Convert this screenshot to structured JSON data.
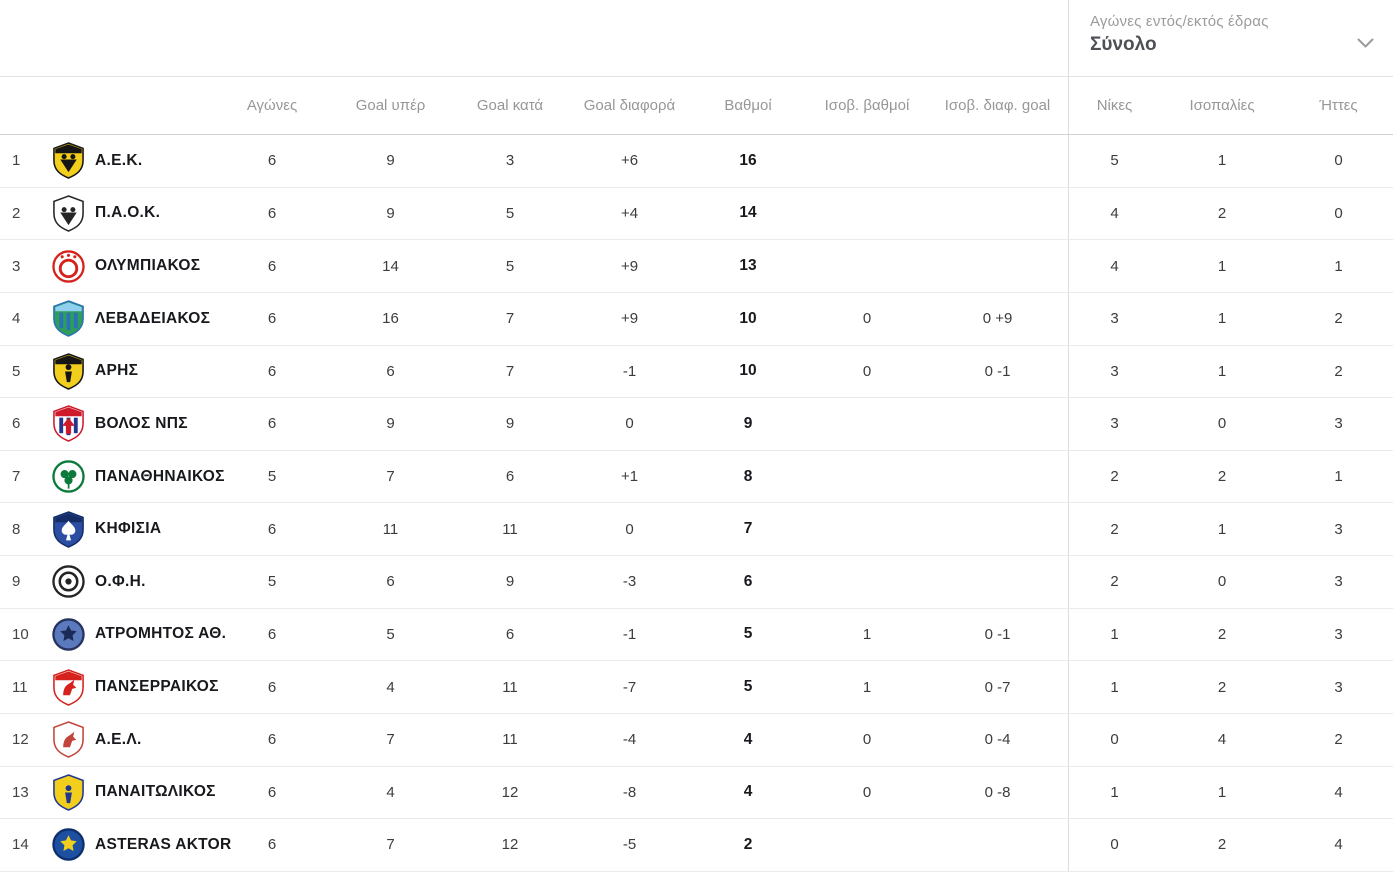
{
  "filter": {
    "label": "Αγώνες εντός/εκτός έδρας",
    "value": "Σύνολο",
    "chevron_icon": "chevron-down",
    "chevron_color": "#9b9b9b"
  },
  "colors": {
    "header_text": "#97979a",
    "row_border": "#ebebeb",
    "section_divider": "#dedede",
    "team_name_text": "#17191d",
    "value_text": "#3c3c3c"
  },
  "table": {
    "columns": [
      "",
      "Αγώνες",
      "Goal υπέρ",
      "Goal κατά",
      "Goal διαφορά",
      "Βαθμοί",
      "Ισοβ. βαθμοί",
      "Ισοβ. διαφ. goal",
      "Νίκες",
      "Ισοπαλίες",
      "Ήττες"
    ],
    "rows": [
      {
        "pos": 1,
        "team": "Α.Ε.Κ.",
        "played": 6,
        "gf": 9,
        "ga": 3,
        "gd": "+6",
        "pts": 16,
        "tb_pts": "",
        "tb_gd": "",
        "wins": 5,
        "draws": 1,
        "losses": 0,
        "logo": {
          "shape": "shield",
          "bg": "#f2cf1d",
          "border": "#151515",
          "band": "#151515",
          "emblems": [
            {
              "type": "eagle",
              "color": "#151515"
            }
          ]
        }
      },
      {
        "pos": 2,
        "team": "Π.Α.Ο.Κ.",
        "played": 6,
        "gf": 9,
        "ga": 5,
        "gd": "+4",
        "pts": 14,
        "tb_pts": "",
        "tb_gd": "",
        "wins": 4,
        "draws": 2,
        "losses": 0,
        "logo": {
          "shape": "shield",
          "bg": "#ffffff",
          "border": "#262626",
          "emblems": [
            {
              "type": "eagle",
              "color": "#262626"
            }
          ]
        }
      },
      {
        "pos": 3,
        "team": "ΟΛΥΜΠΙΑΚΟΣ",
        "played": 6,
        "gf": 14,
        "ga": 5,
        "gd": "+9",
        "pts": 13,
        "tb_pts": "",
        "tb_gd": "",
        "wins": 4,
        "draws": 1,
        "losses": 1,
        "logo": {
          "shape": "circle",
          "bg": "#ffffff",
          "border": "#d6221c",
          "emblems": [
            {
              "type": "wreath",
              "color": "#d6221c"
            }
          ]
        }
      },
      {
        "pos": 4,
        "team": "ΛΕΒΑΔΕΙΑΚΟΣ",
        "played": 6,
        "gf": 16,
        "ga": 7,
        "gd": "+9",
        "pts": 10,
        "tb_pts": "0",
        "tb_gd": "0 +9",
        "wins": 3,
        "draws": 1,
        "losses": 2,
        "logo": {
          "shape": "shield",
          "bg": "#2f9e57",
          "border": "#2a72b8",
          "band": "#8ed0ee",
          "emblems": [
            {
              "type": "stripes",
              "color": "#2a72b8"
            }
          ]
        }
      },
      {
        "pos": 5,
        "team": "ΑΡΗΣ",
        "played": 6,
        "gf": 6,
        "ga": 7,
        "gd": "-1",
        "pts": 10,
        "tb_pts": "0",
        "tb_gd": "0 -1",
        "wins": 3,
        "draws": 1,
        "losses": 2,
        "logo": {
          "shape": "shield",
          "bg": "#f2cf1d",
          "border": "#151515",
          "band": "#151515",
          "emblems": [
            {
              "type": "figure",
              "color": "#151515"
            }
          ]
        }
      },
      {
        "pos": 6,
        "team": "ΒΟΛΟΣ ΝΠΣ",
        "played": 6,
        "gf": 9,
        "ga": 9,
        "gd": "0",
        "pts": 9,
        "tb_pts": "",
        "tb_gd": "",
        "wins": 3,
        "draws": 0,
        "losses": 3,
        "logo": {
          "shape": "shield",
          "bg": "#ffffff",
          "border": "#cf1a2b",
          "band": "#cf1a2b",
          "emblems": [
            {
              "type": "stripes",
              "color": "#20368f"
            },
            {
              "type": "arrow",
              "color": "#cf1a2b"
            }
          ]
        }
      },
      {
        "pos": 7,
        "team": "ΠΑΝΑΘΗΝΑΙΚΟΣ",
        "played": 5,
        "gf": 7,
        "ga": 6,
        "gd": "+1",
        "pts": 8,
        "tb_pts": "",
        "tb_gd": "",
        "wins": 2,
        "draws": 2,
        "losses": 1,
        "logo": {
          "shape": "circle",
          "bg": "#ffffff",
          "border": "#0b7a3b",
          "emblems": [
            {
              "type": "clover",
              "color": "#0b7a3b"
            }
          ]
        }
      },
      {
        "pos": 8,
        "team": "ΚΗΦΙΣΙΑ",
        "played": 6,
        "gf": 11,
        "ga": 11,
        "gd": "0",
        "pts": 7,
        "tb_pts": "",
        "tb_gd": "",
        "wins": 2,
        "draws": 1,
        "losses": 3,
        "logo": {
          "shape": "shield",
          "bg": "#2b4ea2",
          "border": "#142d66",
          "band": "#142d66",
          "emblems": [
            {
              "type": "spade",
              "color": "#ffffff"
            }
          ]
        }
      },
      {
        "pos": 9,
        "team": "Ο.Φ.Η.",
        "played": 5,
        "gf": 6,
        "ga": 9,
        "gd": "-3",
        "pts": 6,
        "tb_pts": "",
        "tb_gd": "",
        "wins": 2,
        "draws": 0,
        "losses": 3,
        "logo": {
          "shape": "circle",
          "bg": "#ffffff",
          "border": "#242424",
          "emblems": [
            {
              "type": "ring",
              "color": "#242424"
            }
          ]
        }
      },
      {
        "pos": 10,
        "team": "ΑΤΡΟΜΗΤΟΣ ΑΘ.",
        "played": 6,
        "gf": 5,
        "ga": 6,
        "gd": "-1",
        "pts": 5,
        "tb_pts": "1",
        "tb_gd": "0 -1",
        "wins": 1,
        "draws": 2,
        "losses": 3,
        "logo": {
          "shape": "circle",
          "bg": "#5b79bd",
          "border": "#26335f",
          "emblems": [
            {
              "type": "star",
              "color": "#1c2a57"
            }
          ]
        }
      },
      {
        "pos": 11,
        "team": "ΠΑΝΣΕΡΡΑΙΚΟΣ",
        "played": 6,
        "gf": 4,
        "ga": 11,
        "gd": "-7",
        "pts": 5,
        "tb_pts": "1",
        "tb_gd": "0 -7",
        "wins": 1,
        "draws": 2,
        "losses": 3,
        "logo": {
          "shape": "shield",
          "bg": "#ffffff",
          "border": "#d6221c",
          "band": "#d6221c",
          "emblems": [
            {
              "type": "horse",
              "color": "#d6221c"
            }
          ]
        }
      },
      {
        "pos": 12,
        "team": "Α.Ε.Λ.",
        "played": 6,
        "gf": 7,
        "ga": 11,
        "gd": "-4",
        "pts": 4,
        "tb_pts": "0",
        "tb_gd": "0 -4",
        "wins": 0,
        "draws": 4,
        "losses": 2,
        "logo": {
          "shape": "shield",
          "bg": "#ffffff",
          "border": "#c2453c",
          "emblems": [
            {
              "type": "horse",
              "color": "#c2453c"
            }
          ]
        }
      },
      {
        "pos": 13,
        "team": "ΠΑΝΑΙΤΩΛΙΚΟΣ",
        "played": 6,
        "gf": 4,
        "ga": 12,
        "gd": "-8",
        "pts": 4,
        "tb_pts": "0",
        "tb_gd": "0 -8",
        "wins": 1,
        "draws": 1,
        "losses": 4,
        "logo": {
          "shape": "shield",
          "bg": "#f2cf1d",
          "border": "#20368f",
          "emblems": [
            {
              "type": "figure",
              "color": "#20368f"
            }
          ]
        }
      },
      {
        "pos": 14,
        "team": "ASTERAS AKTOR",
        "played": 6,
        "gf": 7,
        "ga": 12,
        "gd": "-5",
        "pts": 2,
        "tb_pts": "",
        "tb_gd": "",
        "wins": 0,
        "draws": 2,
        "losses": 4,
        "logo": {
          "shape": "circle",
          "bg": "#1d50a0",
          "border": "#0e2f6e",
          "emblems": [
            {
              "type": "star",
              "color": "#f2cf1d"
            }
          ]
        }
      }
    ]
  }
}
